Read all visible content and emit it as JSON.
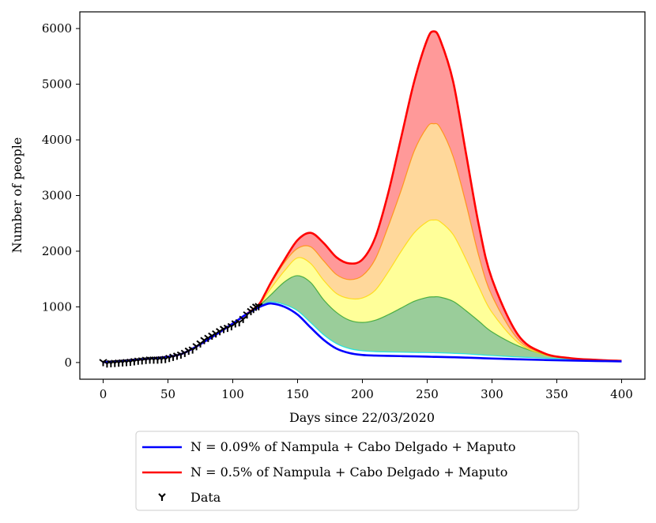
{
  "chart_data": {
    "type": "area",
    "xlabel": "Days since 22/03/2020",
    "ylabel": "Number of people",
    "xlim": [
      -18,
      418
    ],
    "ylim": [
      -300,
      6300
    ],
    "xticks": [
      0,
      50,
      100,
      150,
      200,
      250,
      300,
      350,
      400
    ],
    "yticks": [
      0,
      1000,
      2000,
      3000,
      4000,
      5000,
      6000
    ],
    "grid": false,
    "legend_placement": "below",
    "legend": [
      {
        "label": "N = 0.09% of Nampula + Cabo Delgado + Maputo",
        "color": "#0000ff",
        "kind": "line"
      },
      {
        "label": "N = 0.5% of Nampula + Cabo Delgado + Maputo",
        "color": "#ff0000",
        "kind": "line"
      },
      {
        "label": "Data",
        "color": "#000000",
        "kind": "marker"
      }
    ],
    "x": [
      0,
      20,
      40,
      60,
      80,
      100,
      110,
      120,
      125,
      130,
      140,
      150,
      160,
      170,
      180,
      190,
      200,
      210,
      220,
      230,
      240,
      250,
      255,
      260,
      270,
      280,
      290,
      300,
      320,
      340,
      360,
      380,
      400
    ],
    "bands": [
      {
        "name": "cyan",
        "color": "#00e5e5",
        "values": [
          5,
          40,
          80,
          150,
          400,
          700,
          860,
          1000,
          1060,
          1090,
          1040,
          930,
          720,
          500,
          340,
          250,
          210,
          195,
          190,
          185,
          180,
          178,
          176,
          174,
          165,
          155,
          140,
          125,
          100,
          80,
          60,
          45,
          30
        ]
      },
      {
        "name": "green",
        "color": "#2ca02c",
        "fill": "#9acd9a",
        "values": [
          5,
          40,
          80,
          150,
          400,
          700,
          860,
          1020,
          1120,
          1230,
          1450,
          1560,
          1440,
          1130,
          900,
          760,
          720,
          760,
          860,
          980,
          1100,
          1170,
          1180,
          1175,
          1100,
          930,
          740,
          550,
          300,
          150,
          80,
          50,
          30
        ]
      },
      {
        "name": "yellow",
        "color": "#ffd700",
        "fill": "#ffff99",
        "values": [
          5,
          40,
          80,
          150,
          400,
          700,
          860,
          1030,
          1180,
          1350,
          1650,
          1880,
          1780,
          1480,
          1240,
          1150,
          1160,
          1300,
          1630,
          2000,
          2330,
          2530,
          2560,
          2530,
          2300,
          1850,
          1350,
          900,
          360,
          140,
          75,
          45,
          30
        ]
      },
      {
        "name": "orange",
        "color": "#ff8c00",
        "fill": "#ffd89b",
        "values": [
          5,
          40,
          80,
          150,
          400,
          700,
          860,
          1040,
          1230,
          1440,
          1800,
          2050,
          2080,
          1830,
          1580,
          1490,
          1560,
          1860,
          2450,
          3100,
          3800,
          4230,
          4290,
          4220,
          3700,
          2850,
          1900,
          1200,
          420,
          160,
          80,
          48,
          30
        ]
      },
      {
        "name": "red",
        "color": "#ff0000",
        "fill": "#ff9999",
        "values": [
          5,
          40,
          80,
          150,
          400,
          700,
          860,
          1040,
          1240,
          1460,
          1850,
          2200,
          2330,
          2150,
          1890,
          1780,
          1850,
          2250,
          3050,
          4050,
          5050,
          5800,
          5950,
          5800,
          5050,
          3750,
          2450,
          1500,
          500,
          170,
          80,
          48,
          30
        ]
      }
    ],
    "blue_series": {
      "name": "N = 0.09% of Nampula + Cabo Delgado + Maputo",
      "color": "#0000ff",
      "values": [
        5,
        40,
        80,
        150,
        400,
        700,
        860,
        990,
        1040,
        1060,
        1000,
        860,
        630,
        410,
        250,
        170,
        135,
        125,
        120,
        115,
        110,
        105,
        102,
        100,
        95,
        88,
        80,
        72,
        58,
        46,
        36,
        28,
        20
      ]
    },
    "data_points": {
      "name": "Data",
      "x": [
        0,
        3,
        6,
        9,
        12,
        15,
        18,
        21,
        24,
        27,
        30,
        33,
        36,
        39,
        42,
        45,
        48,
        51,
        54,
        57,
        60,
        63,
        66,
        69,
        72,
        75,
        78,
        81,
        84,
        87,
        90,
        93,
        96,
        99,
        102,
        105,
        108,
        111,
        114,
        116,
        118,
        120
      ],
      "y": [
        5,
        -20,
        -15,
        -10,
        -5,
        0,
        5,
        10,
        20,
        30,
        35,
        45,
        50,
        50,
        50,
        55,
        60,
        80,
        100,
        120,
        140,
        170,
        210,
        230,
        290,
        340,
        400,
        440,
        480,
        520,
        560,
        600,
        620,
        650,
        700,
        720,
        780,
        860,
        920,
        960,
        1000,
        1010
      ]
    }
  }
}
